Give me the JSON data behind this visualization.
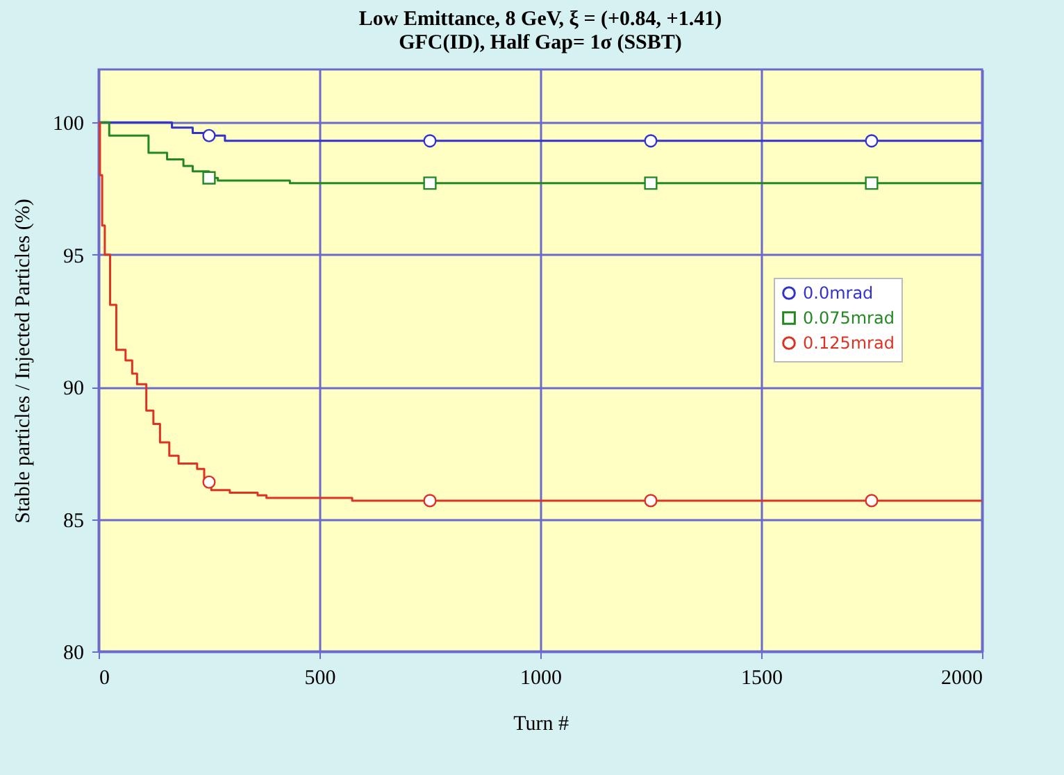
{
  "chart_data": {
    "type": "step",
    "title": [
      "Low Emittance, 8 GeV, ξ = (+0.84, +1.41)",
      "GFC(ID), Half Gap= 1σ (SSBT)"
    ],
    "xlabel": "Turn #",
    "ylabel": "Stable particles / Injected Particles (%)",
    "xlim": [
      0,
      2000
    ],
    "xticks": [
      0,
      500,
      1000,
      1500,
      2000
    ],
    "ylim": [
      80,
      102
    ],
    "yticks": [
      80,
      85,
      90,
      95,
      100
    ],
    "grid": true,
    "legend": "right",
    "series": [
      {
        "name": "0.0mrad",
        "color": "#3333cc",
        "x": [
          0,
          166,
          213,
          250,
          286,
          2000
        ],
        "values": [
          100,
          99.8,
          99.6,
          99.5,
          99.3,
          99.3
        ]
      },
      {
        "name": "0.075mrad",
        "color": "#228822",
        "x": [
          0,
          24,
          103,
          113,
          155,
          192,
          213,
          250,
          260,
          270,
          433,
          2000
        ],
        "values": [
          100,
          99.5,
          99.5,
          98.85,
          98.6,
          98.35,
          98.15,
          97.9,
          97.9,
          97.8,
          97.7,
          97.7
        ]
      },
      {
        "name": "0.125mrad",
        "color": "#dd3322",
        "x": [
          0,
          3,
          8,
          14,
          26,
          40,
          61,
          76,
          87,
          97,
          108,
          124,
          139,
          160,
          181,
          223,
          239,
          250,
          255,
          297,
          360,
          380,
          574,
          2000
        ],
        "values": [
          100,
          98,
          96.1,
          95,
          93.1,
          91.4,
          91,
          90.5,
          90.1,
          90.1,
          89.1,
          88.6,
          87.9,
          87.4,
          87.1,
          86.9,
          86.5,
          86.4,
          86.1,
          86.0,
          85.9,
          85.8,
          85.7,
          85.7
        ]
      },
      {
        "type": "scatter",
        "color": "#3333cc",
        "marker": "circle",
        "x": [
          250,
          750,
          1250,
          1750
        ],
        "values": [
          99.5,
          99.3,
          99.3,
          99.3
        ]
      },
      {
        "type": "scatter",
        "color": "#228822",
        "marker": "square",
        "x": [
          250,
          750,
          1250,
          1750
        ],
        "values": [
          97.9,
          97.7,
          97.7,
          97.7
        ]
      },
      {
        "type": "scatter",
        "color": "#dd3322",
        "marker": "circle",
        "x": [
          250,
          750,
          1250,
          1750
        ],
        "values": [
          86.4,
          85.7,
          85.7,
          85.7
        ]
      }
    ]
  }
}
